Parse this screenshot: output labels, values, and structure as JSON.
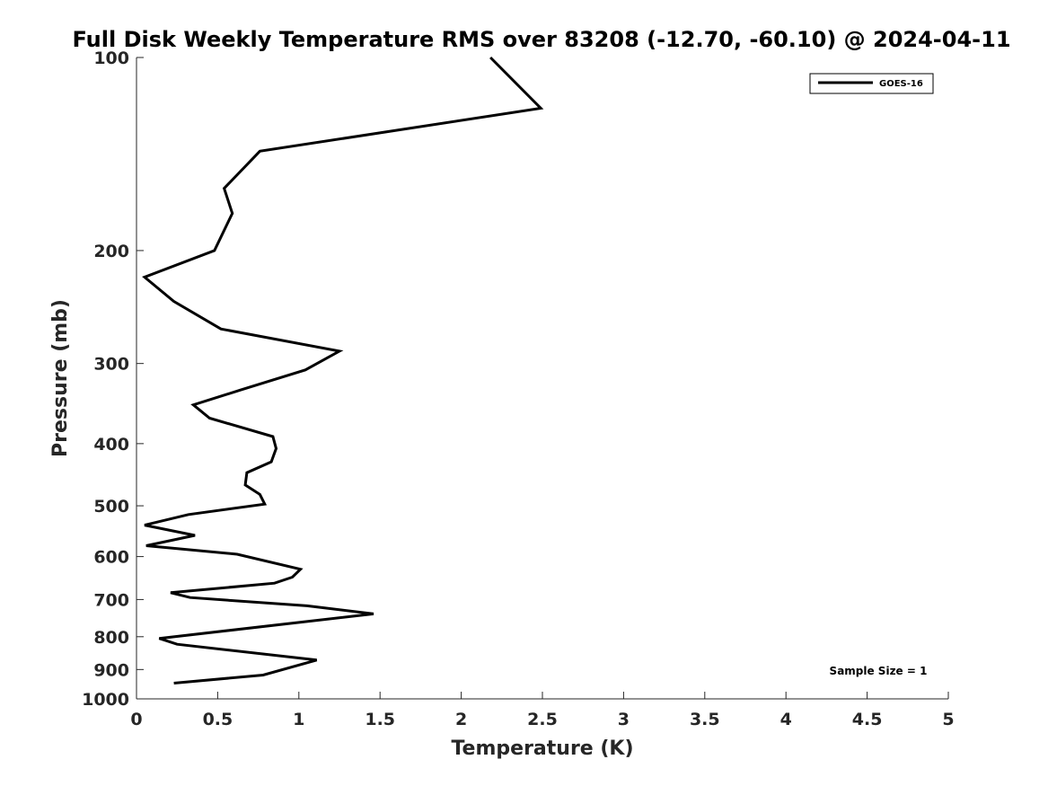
{
  "chart_data": {
    "type": "line",
    "title": "Full Disk Weekly Temperature RMS over 83208 (-12.70, -60.10) @ 2024-04-11",
    "xlabel": "Temperature (K)",
    "ylabel": "Pressure (mb)",
    "xlim": [
      0,
      5
    ],
    "ylim": [
      1000,
      100
    ],
    "yscale": "log",
    "x_ticks": [
      0,
      0.5,
      1,
      1.5,
      2,
      2.5,
      3,
      3.5,
      4,
      4.5,
      5
    ],
    "x_tick_labels": [
      "0",
      "0.5",
      "1",
      "1.5",
      "2",
      "2.5",
      "3",
      "3.5",
      "4",
      "4.5",
      "5"
    ],
    "y_ticks": [
      100,
      200,
      300,
      400,
      500,
      600,
      700,
      800,
      900,
      1000
    ],
    "y_tick_labels": [
      "100",
      "200",
      "300",
      "400",
      "500",
      "600",
      "700",
      "800",
      "900",
      "1000"
    ],
    "grid": false,
    "legend_position": "top-right",
    "annotation": "Sample Size = 1",
    "series": [
      {
        "name": "GOES-16",
        "color": "#000000",
        "x": [
          2.18,
          2.49,
          0.76,
          0.54,
          0.59,
          0.48,
          0.05,
          0.23,
          0.52,
          1.25,
          1.04,
          0.64,
          0.35,
          0.45,
          0.84,
          0.86,
          0.83,
          0.68,
          0.67,
          0.76,
          0.79,
          0.32,
          0.05,
          0.36,
          0.06,
          0.62,
          1.01,
          0.96,
          0.85,
          0.21,
          0.33,
          1.05,
          1.46,
          0.14,
          0.25,
          1.11,
          0.78,
          0.23
        ],
        "y": [
          100,
          120,
          140,
          160,
          175,
          200,
          220,
          240,
          265,
          287,
          307,
          330,
          348,
          365,
          390,
          407,
          427,
          444,
          464,
          480,
          497,
          516,
          536,
          556,
          577,
          595,
          628,
          646,
          660,
          683,
          695,
          716,
          737,
          805,
          822,
          870,
          918,
          945
        ]
      }
    ]
  }
}
